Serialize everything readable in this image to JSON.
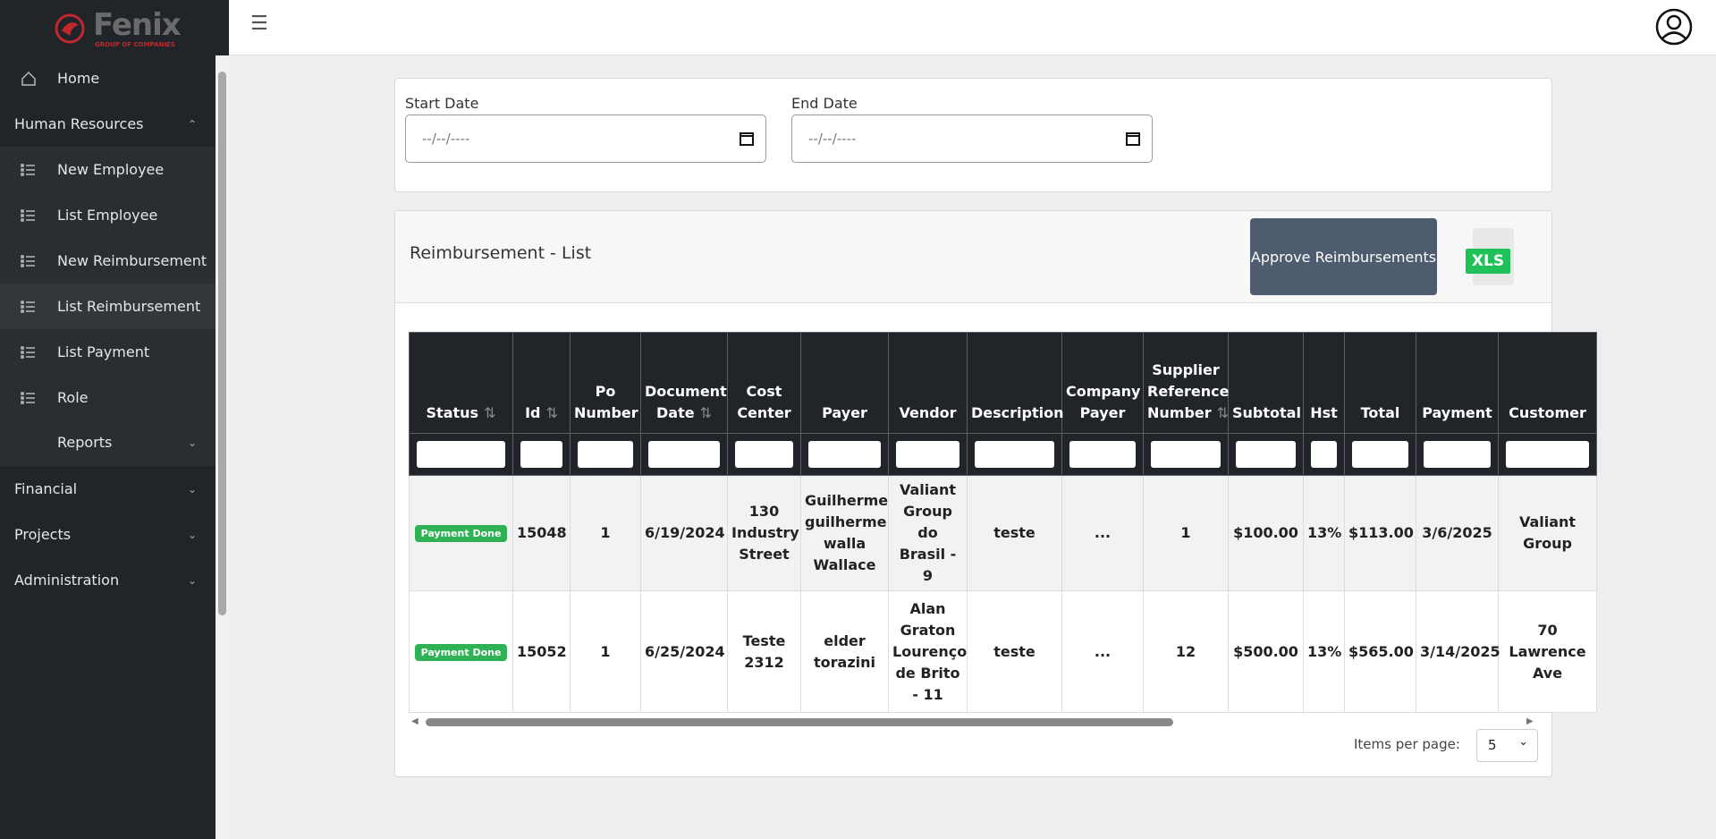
{
  "logo": {
    "name": "Fenix",
    "tagline": "GROUP OF COMPANIES"
  },
  "menu": [
    {
      "label": "Home"
    },
    {
      "label": "Human Resources"
    },
    {
      "label": "New Employee"
    },
    {
      "label": "List Employee"
    },
    {
      "label": "New Reimbursement"
    },
    {
      "label": "List Reimbursement"
    },
    {
      "label": "List Payment"
    },
    {
      "label": "Role"
    },
    {
      "label": "Reports"
    },
    {
      "label": "Financial"
    },
    {
      "label": "Projects"
    },
    {
      "label": "Administration"
    }
  ],
  "filters": {
    "start_label": "Start Date",
    "start_placeholder": "--/--/----",
    "end_label": "End Date",
    "end_placeholder": "--/--/----"
  },
  "list": {
    "title": "Reimbursement - List",
    "approve_button": "Approve Reimbursements",
    "export_label": "XLS"
  },
  "table": {
    "columns": [
      "Status",
      "Id",
      "Po Number",
      "Document Date",
      "Cost Center",
      "Payer",
      "Vendor",
      "Description",
      "Company Payer",
      "Supplier Reference Number",
      "Subtotal",
      "Hst",
      "Total",
      "Payment",
      "Customer"
    ],
    "rows": [
      [
        "Payment Done",
        "15048",
        "1",
        "6/19/2024",
        "130 Industry Street",
        "Guilherme guilherme walla Wallace",
        "Valiant Group do Brasil - 9",
        "teste",
        "...",
        "1",
        "$100.00",
        "13%",
        "$113.00",
        "3/6/2025",
        "Valiant Group"
      ],
      [
        "Payment Done",
        "15052",
        "1",
        "6/25/2024",
        "Teste 2312",
        "elder torazini",
        "Alan Graton Lourenço de Brito - 11",
        "teste",
        "...",
        "12",
        "$500.00",
        "13%",
        "$565.00",
        "3/14/2025",
        "70 Lawrence Ave"
      ]
    ]
  },
  "pagination": {
    "label": "Items per page:",
    "value": "5"
  }
}
